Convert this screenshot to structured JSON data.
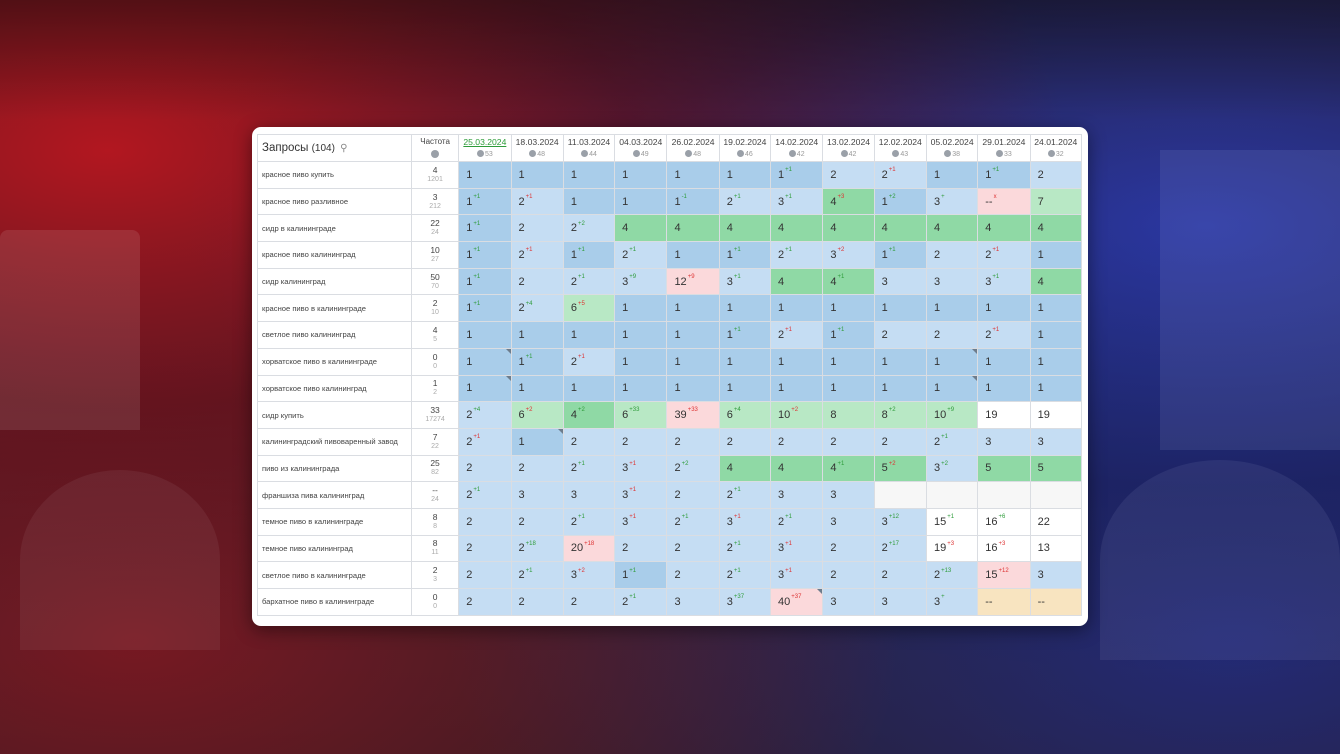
{
  "header": {
    "queries_label": "Запросы",
    "queries_count": "(104)",
    "freq_label": "Частота"
  },
  "dates": [
    {
      "date": "25.03.2024",
      "n": "53",
      "active": true
    },
    {
      "date": "18.03.2024",
      "n": "48"
    },
    {
      "date": "11.03.2024",
      "n": "44"
    },
    {
      "date": "04.03.2024",
      "n": "49"
    },
    {
      "date": "26.02.2024",
      "n": "48"
    },
    {
      "date": "19.02.2024",
      "n": "46"
    },
    {
      "date": "14.02.2024",
      "n": "42"
    },
    {
      "date": "13.02.2024",
      "n": "42"
    },
    {
      "date": "12.02.2024",
      "n": "43"
    },
    {
      "date": "05.02.2024",
      "n": "38"
    },
    {
      "date": "29.01.2024",
      "n": "33"
    },
    {
      "date": "24.01.2024",
      "n": "32"
    }
  ],
  "rows": [
    {
      "q": "красное пиво купить",
      "f1": "4",
      "f2": "1201",
      "cells": [
        [
          "1",
          "",
          "",
          "b"
        ],
        [
          "1",
          "",
          "",
          "b"
        ],
        [
          "1",
          "",
          "",
          "b"
        ],
        [
          "1",
          "",
          "",
          "b"
        ],
        [
          "1",
          "",
          "",
          "b"
        ],
        [
          "1",
          "",
          "",
          "b"
        ],
        [
          "1",
          "+1",
          "up",
          "b"
        ],
        [
          "2",
          "",
          "",
          "lb"
        ],
        [
          "2",
          "+1",
          "dn",
          "lb"
        ],
        [
          "1",
          "",
          "",
          "b"
        ],
        [
          "1",
          "+1",
          "up",
          "b"
        ],
        [
          "2",
          "",
          "",
          "lb"
        ]
      ]
    },
    {
      "q": "красное пиво разливное",
      "f1": "3",
      "f2": "212",
      "cells": [
        [
          "1",
          "+1",
          "up",
          "b"
        ],
        [
          "2",
          "+1",
          "dn",
          "lb"
        ],
        [
          "1",
          "",
          "",
          "b"
        ],
        [
          "1",
          "",
          "",
          "b"
        ],
        [
          "1",
          "-1",
          "up",
          "b"
        ],
        [
          "2",
          "+1",
          "up",
          "lb"
        ],
        [
          "3",
          "+1",
          "up",
          "lb"
        ],
        [
          "4",
          "+3",
          "dn",
          "g"
        ],
        [
          "1",
          "+2",
          "up",
          "b"
        ],
        [
          "3",
          "+",
          "up",
          "lb"
        ],
        [
          "--",
          "x",
          "dn",
          "p"
        ],
        [
          "7",
          "",
          "",
          "lg"
        ]
      ]
    },
    {
      "q": "сидр в калининграде",
      "f1": "22",
      "f2": "24",
      "cells": [
        [
          "1",
          "+1",
          "up",
          "b"
        ],
        [
          "2",
          "",
          "",
          "lb"
        ],
        [
          "2",
          "+2",
          "up",
          "lb"
        ],
        [
          "4",
          "",
          "",
          "g"
        ],
        [
          "4",
          "",
          "",
          "g"
        ],
        [
          "4",
          "",
          "",
          "g"
        ],
        [
          "4",
          "",
          "",
          "g"
        ],
        [
          "4",
          "",
          "",
          "g"
        ],
        [
          "4",
          "",
          "",
          "g"
        ],
        [
          "4",
          "",
          "",
          "g"
        ],
        [
          "4",
          "",
          "",
          "g"
        ],
        [
          "4",
          "",
          "",
          "g"
        ]
      ]
    },
    {
      "q": "красное пиво калининград",
      "f1": "10",
      "f2": "27",
      "cells": [
        [
          "1",
          "+1",
          "up",
          "b"
        ],
        [
          "2",
          "+1",
          "dn",
          "lb"
        ],
        [
          "1",
          "+1",
          "up",
          "b"
        ],
        [
          "2",
          "+1",
          "up",
          "lb"
        ],
        [
          "1",
          "",
          "",
          "b"
        ],
        [
          "1",
          "+1",
          "up",
          "b"
        ],
        [
          "2",
          "+1",
          "up",
          "lb"
        ],
        [
          "3",
          "+2",
          "dn",
          "lb"
        ],
        [
          "1",
          "+1",
          "up",
          "b"
        ],
        [
          "2",
          "",
          "",
          "lb"
        ],
        [
          "2",
          "+1",
          "dn",
          "lb"
        ],
        [
          "1",
          "",
          "",
          "b"
        ]
      ]
    },
    {
      "q": "сидр калининград",
      "f1": "50",
      "f2": "70",
      "cells": [
        [
          "1",
          "+1",
          "up",
          "b"
        ],
        [
          "2",
          "",
          "",
          "lb"
        ],
        [
          "2",
          "+1",
          "up",
          "lb"
        ],
        [
          "3",
          "+9",
          "up",
          "lb"
        ],
        [
          "12",
          "+9",
          "dn",
          "p"
        ],
        [
          "3",
          "+1",
          "up",
          "lb"
        ],
        [
          "4",
          "",
          "",
          "g"
        ],
        [
          "4",
          "+1",
          "up",
          "g"
        ],
        [
          "3",
          "",
          "",
          "lb"
        ],
        [
          "3",
          "",
          "",
          "lb"
        ],
        [
          "3",
          "+1",
          "up",
          "lb"
        ],
        [
          "4",
          "",
          "",
          "g"
        ]
      ]
    },
    {
      "q": "красное пиво в калининграде",
      "f1": "2",
      "f2": "10",
      "cells": [
        [
          "1",
          "+1",
          "up",
          "b"
        ],
        [
          "2",
          "+4",
          "up",
          "lb"
        ],
        [
          "6",
          "+5",
          "dn",
          "lg"
        ],
        [
          "1",
          "",
          "",
          "b"
        ],
        [
          "1",
          "",
          "",
          "b"
        ],
        [
          "1",
          "",
          "",
          "b"
        ],
        [
          "1",
          "",
          "",
          "b"
        ],
        [
          "1",
          "",
          "",
          "b"
        ],
        [
          "1",
          "",
          "",
          "b"
        ],
        [
          "1",
          "",
          "",
          "b"
        ],
        [
          "1",
          "",
          "",
          "b"
        ],
        [
          "1",
          "",
          "",
          "b"
        ]
      ]
    },
    {
      "q": "светлое пиво калининград",
      "f1": "4",
      "f2": "5",
      "cells": [
        [
          "1",
          "",
          "",
          "b"
        ],
        [
          "1",
          "",
          "",
          "b"
        ],
        [
          "1",
          "",
          "",
          "b"
        ],
        [
          "1",
          "",
          "",
          "b"
        ],
        [
          "1",
          "",
          "",
          "b"
        ],
        [
          "1",
          "+1",
          "up",
          "b"
        ],
        [
          "2",
          "+1",
          "dn",
          "lb"
        ],
        [
          "1",
          "+1",
          "up",
          "b"
        ],
        [
          "2",
          "",
          "",
          "lb"
        ],
        [
          "2",
          "",
          "",
          "lb"
        ],
        [
          "2",
          "+1",
          "dn",
          "lb"
        ],
        [
          "1",
          "",
          "",
          "b"
        ]
      ]
    },
    {
      "q": "хорватское пиво в калининграде",
      "f1": "0",
      "f2": "0",
      "cells": [
        [
          "1",
          "",
          "",
          "b",
          "c"
        ],
        [
          "1",
          "+1",
          "up",
          "b"
        ],
        [
          "2",
          "+1",
          "dn",
          "lb"
        ],
        [
          "1",
          "",
          "",
          "b"
        ],
        [
          "1",
          "",
          "",
          "b"
        ],
        [
          "1",
          "",
          "",
          "b"
        ],
        [
          "1",
          "",
          "",
          "b"
        ],
        [
          "1",
          "",
          "",
          "b"
        ],
        [
          "1",
          "",
          "",
          "b"
        ],
        [
          "1",
          "",
          "",
          "b",
          "c"
        ],
        [
          "1",
          "",
          "",
          "b"
        ],
        [
          "1",
          "",
          "",
          "b"
        ]
      ]
    },
    {
      "q": "хорватское пиво калининград",
      "f1": "1",
      "f2": "2",
      "cells": [
        [
          "1",
          "",
          "",
          "b",
          "c"
        ],
        [
          "1",
          "",
          "",
          "b"
        ],
        [
          "1",
          "",
          "",
          "b"
        ],
        [
          "1",
          "",
          "",
          "b"
        ],
        [
          "1",
          "",
          "",
          "b"
        ],
        [
          "1",
          "",
          "",
          "b"
        ],
        [
          "1",
          "",
          "",
          "b"
        ],
        [
          "1",
          "",
          "",
          "b"
        ],
        [
          "1",
          "",
          "",
          "b"
        ],
        [
          "1",
          "",
          "",
          "b",
          "c"
        ],
        [
          "1",
          "",
          "",
          "b"
        ],
        [
          "1",
          "",
          "",
          "b"
        ]
      ]
    },
    {
      "q": "сидр купить",
      "f1": "33",
      "f2": "17274",
      "cells": [
        [
          "2",
          "+4",
          "up",
          "lb"
        ],
        [
          "6",
          "+2",
          "dn",
          "lg"
        ],
        [
          "4",
          "+2",
          "up",
          "g"
        ],
        [
          "6",
          "+33",
          "up",
          "lg"
        ],
        [
          "39",
          "+33",
          "dn",
          "p"
        ],
        [
          "6",
          "+4",
          "up",
          "lg"
        ],
        [
          "10",
          "+2",
          "dn",
          "lg"
        ],
        [
          "8",
          "",
          "",
          "lg"
        ],
        [
          "8",
          "+2",
          "up",
          "lg"
        ],
        [
          "10",
          "+9",
          "up",
          "lg"
        ],
        [
          "19",
          "",
          "",
          "w"
        ],
        [
          "19",
          "",
          "",
          "w"
        ]
      ]
    },
    {
      "q": "калининградский пивоваренный завод",
      "f1": "7",
      "f2": "22",
      "cells": [
        [
          "2",
          "+1",
          "dn",
          "lb"
        ],
        [
          "1",
          "",
          "",
          "b",
          "c"
        ],
        [
          "2",
          "",
          "",
          "lb"
        ],
        [
          "2",
          "",
          "",
          "lb"
        ],
        [
          "2",
          "",
          "",
          "lb"
        ],
        [
          "2",
          "",
          "",
          "lb"
        ],
        [
          "2",
          "",
          "",
          "lb"
        ],
        [
          "2",
          "",
          "",
          "lb"
        ],
        [
          "2",
          "",
          "",
          "lb"
        ],
        [
          "2",
          "+1",
          "up",
          "lb"
        ],
        [
          "3",
          "",
          "",
          "lb"
        ],
        [
          "3",
          "",
          "",
          "lb"
        ]
      ]
    },
    {
      "q": "пиво из калининграда",
      "f1": "25",
      "f2": "82",
      "cells": [
        [
          "2",
          "",
          "",
          "lb"
        ],
        [
          "2",
          "",
          "",
          "lb"
        ],
        [
          "2",
          "+1",
          "up",
          "lb"
        ],
        [
          "3",
          "+1",
          "dn",
          "lb"
        ],
        [
          "2",
          "+2",
          "up",
          "lb"
        ],
        [
          "4",
          "",
          "",
          "g"
        ],
        [
          "4",
          "",
          "",
          "g"
        ],
        [
          "4",
          "+1",
          "up",
          "g"
        ],
        [
          "5",
          "+2",
          "dn",
          "g"
        ],
        [
          "3",
          "+2",
          "up",
          "lb"
        ],
        [
          "5",
          "",
          "",
          "g"
        ],
        [
          "5",
          "",
          "",
          "g"
        ]
      ]
    },
    {
      "q": "франшиза пива калининград",
      "f1": "--",
      "f2": "24",
      "cells": [
        [
          "2",
          "+1",
          "up",
          "lb"
        ],
        [
          "3",
          "",
          "",
          "lb"
        ],
        [
          "3",
          "",
          "",
          "lb"
        ],
        [
          "3",
          "+1",
          "dn",
          "lb"
        ],
        [
          "2",
          "",
          "",
          "lb"
        ],
        [
          "2",
          "+1",
          "up",
          "lb"
        ],
        [
          "3",
          "",
          "",
          "lb"
        ],
        [
          "3",
          "",
          "",
          "lb"
        ],
        [
          "",
          "",
          "",
          "e"
        ],
        [
          "",
          "",
          "",
          "e"
        ],
        [
          "",
          "",
          "",
          "e"
        ],
        [
          "",
          "",
          "",
          "e"
        ]
      ]
    },
    {
      "q": "темное пиво в калининграде",
      "f1": "8",
      "f2": "8",
      "cells": [
        [
          "2",
          "",
          "",
          "lb"
        ],
        [
          "2",
          "",
          "",
          "lb"
        ],
        [
          "2",
          "+1",
          "up",
          "lb"
        ],
        [
          "3",
          "+1",
          "dn",
          "lb"
        ],
        [
          "2",
          "+1",
          "up",
          "lb"
        ],
        [
          "3",
          "+1",
          "dn",
          "lb"
        ],
        [
          "2",
          "+1",
          "up",
          "lb"
        ],
        [
          "3",
          "",
          "",
          "lb"
        ],
        [
          "3",
          "+12",
          "up",
          "lb"
        ],
        [
          "15",
          "+1",
          "up",
          "w"
        ],
        [
          "16",
          "+6",
          "up",
          "w"
        ],
        [
          "22",
          "",
          "",
          "w"
        ]
      ]
    },
    {
      "q": "темное пиво калининград",
      "f1": "8",
      "f2": "11",
      "cells": [
        [
          "2",
          "",
          "",
          "lb"
        ],
        [
          "2",
          "+18",
          "up",
          "lb"
        ],
        [
          "20",
          "+18",
          "dn",
          "p"
        ],
        [
          "2",
          "",
          "",
          "lb"
        ],
        [
          "2",
          "",
          "",
          "lb"
        ],
        [
          "2",
          "+1",
          "up",
          "lb"
        ],
        [
          "3",
          "+1",
          "dn",
          "lb"
        ],
        [
          "2",
          "",
          "",
          "lb"
        ],
        [
          "2",
          "+17",
          "up",
          "lb"
        ],
        [
          "19",
          "+3",
          "dn",
          "w"
        ],
        [
          "16",
          "+3",
          "dn",
          "w"
        ],
        [
          "13",
          "",
          "",
          "w"
        ]
      ]
    },
    {
      "q": "светлое пиво в калининграде",
      "f1": "2",
      "f2": "3",
      "cells": [
        [
          "2",
          "",
          "",
          "lb"
        ],
        [
          "2",
          "+1",
          "up",
          "lb"
        ],
        [
          "3",
          "+2",
          "dn",
          "lb"
        ],
        [
          "1",
          "+1",
          "up",
          "b"
        ],
        [
          "2",
          "",
          "",
          "lb"
        ],
        [
          "2",
          "+1",
          "up",
          "lb"
        ],
        [
          "3",
          "+1",
          "dn",
          "lb"
        ],
        [
          "2",
          "",
          "",
          "lb"
        ],
        [
          "2",
          "",
          "",
          "lb"
        ],
        [
          "2",
          "+13",
          "up",
          "lb"
        ],
        [
          "15",
          "+12",
          "dn",
          "p"
        ],
        [
          "3",
          "",
          "",
          "lb"
        ]
      ]
    },
    {
      "q": "бархатное пиво в калининграде",
      "f1": "0",
      "f2": "0",
      "cells": [
        [
          "2",
          "",
          "",
          "lb"
        ],
        [
          "2",
          "",
          "",
          "lb"
        ],
        [
          "2",
          "",
          "",
          "lb"
        ],
        [
          "2",
          "+1",
          "up",
          "lb"
        ],
        [
          "3",
          "",
          "",
          "lb"
        ],
        [
          "3",
          "+37",
          "up",
          "lb"
        ],
        [
          "40",
          "+37",
          "dn",
          "p",
          "c"
        ],
        [
          "3",
          "",
          "",
          "lb"
        ],
        [
          "3",
          "",
          "",
          "lb"
        ],
        [
          "3",
          "+",
          "up",
          "lb"
        ],
        [
          "--",
          "",
          "",
          "y"
        ],
        [
          "--",
          "",
          "",
          "y"
        ]
      ]
    }
  ]
}
